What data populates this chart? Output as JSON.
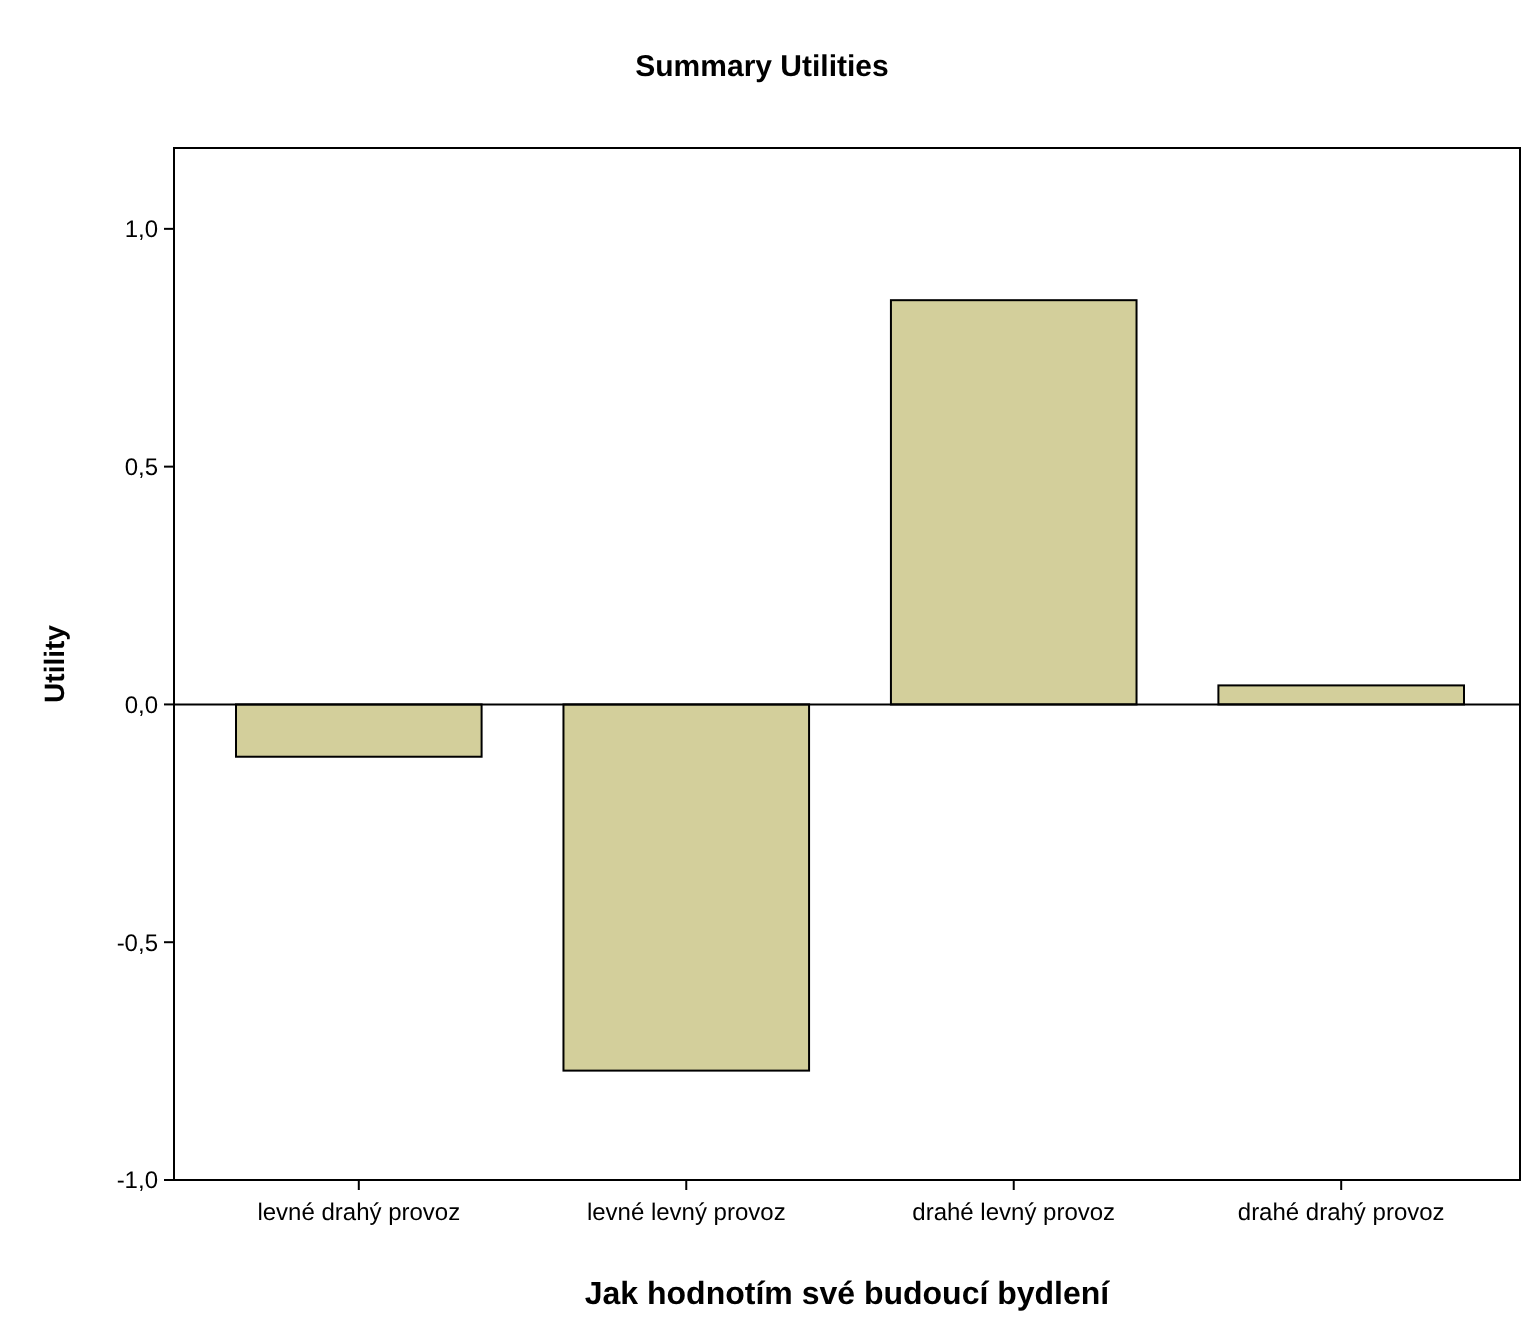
{
  "chart_data": {
    "type": "bar",
    "title": "Summary Utilities",
    "xlabel": "Jak hodnotím své budoucí bydlení",
    "ylabel": "Utility",
    "categories": [
      "levné drahý provoz",
      "levné levný provoz",
      "drahé levný provoz",
      "drahé drahý provoz"
    ],
    "values": [
      -0.11,
      -0.77,
      0.85,
      0.04
    ],
    "color": "#d3cf9b",
    "ylim": [
      -1.0,
      1.17
    ],
    "yticks": [
      {
        "value": -1,
        "label": "-1,0"
      },
      {
        "value": -0.5,
        "label": "-0,5"
      },
      {
        "value": 0,
        "label": "0,0"
      },
      {
        "value": 0.5,
        "label": "0,5"
      },
      {
        "value": 1,
        "label": "1,0"
      }
    ],
    "stacked": false
  }
}
